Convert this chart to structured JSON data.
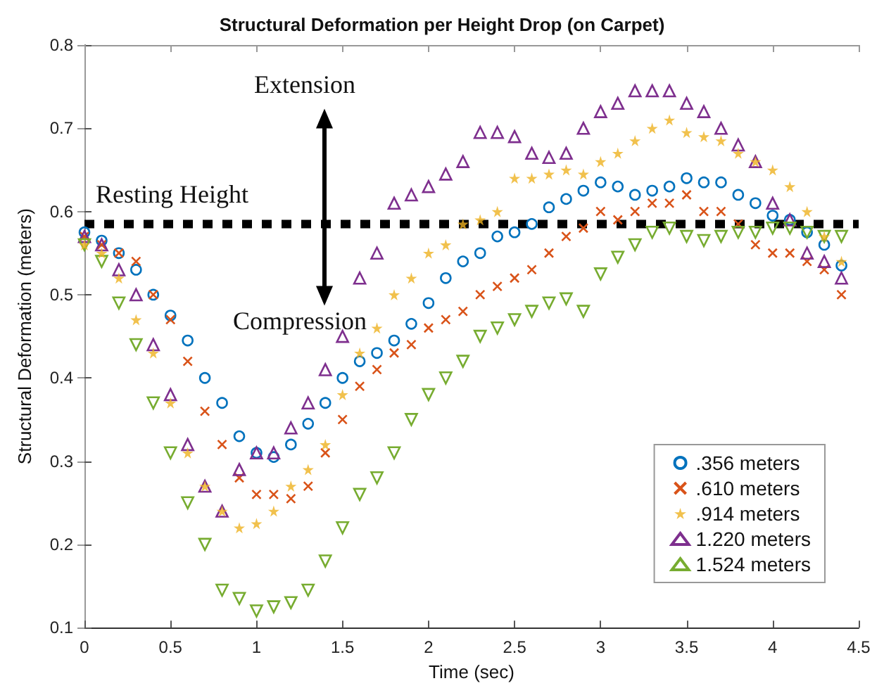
{
  "chart_data": {
    "type": "scatter",
    "title": "Structural Deformation per Height Drop (on Carpet)",
    "xlabel": "Time (sec)",
    "ylabel": "Structural Deformation (meters)",
    "x": [
      0,
      0.1,
      0.2,
      0.3,
      0.4,
      0.5,
      0.6,
      0.7,
      0.8,
      0.9,
      1.0,
      1.1,
      1.2,
      1.3,
      1.4,
      1.5,
      1.6,
      1.7,
      1.8,
      1.9,
      2.0,
      2.1,
      2.2,
      2.3,
      2.4,
      2.5,
      2.6,
      2.7,
      2.8,
      2.9,
      3.0,
      3.1,
      3.2,
      3.3,
      3.4,
      3.5,
      3.6,
      3.7,
      3.8,
      3.9,
      4.0,
      4.1,
      4.2,
      4.3,
      4.4
    ],
    "series": [
      {
        "name": ".356 meters",
        "color": "#0072bd",
        "marker": "circle",
        "values": [
          0.575,
          0.565,
          0.55,
          0.53,
          0.5,
          0.475,
          0.445,
          0.4,
          0.37,
          0.33,
          0.31,
          0.305,
          0.32,
          0.345,
          0.37,
          0.4,
          0.42,
          0.43,
          0.445,
          0.465,
          0.49,
          0.52,
          0.54,
          0.55,
          0.57,
          0.575,
          0.585,
          0.605,
          0.615,
          0.625,
          0.635,
          0.63,
          0.62,
          0.625,
          0.63,
          0.64,
          0.635,
          0.635,
          0.62,
          0.61,
          0.595,
          0.59,
          0.575,
          0.56,
          0.535
        ]
      },
      {
        "name": ".610 meters",
        "color": "#d95319",
        "marker": "cross",
        "values": [
          0.57,
          0.56,
          0.55,
          0.54,
          0.5,
          0.47,
          0.42,
          0.36,
          0.32,
          0.28,
          0.26,
          0.26,
          0.255,
          0.27,
          0.31,
          0.35,
          0.39,
          0.41,
          0.43,
          0.44,
          0.46,
          0.47,
          0.48,
          0.5,
          0.51,
          0.52,
          0.53,
          0.55,
          0.57,
          0.58,
          0.6,
          0.59,
          0.6,
          0.61,
          0.61,
          0.62,
          0.6,
          0.6,
          0.585,
          0.56,
          0.55,
          0.55,
          0.54,
          0.53,
          0.5
        ]
      },
      {
        "name": ".914 meters",
        "color": "#edb120",
        "marker": "star",
        "values": [
          0.56,
          0.55,
          0.52,
          0.47,
          0.43,
          0.37,
          0.31,
          0.27,
          0.24,
          0.22,
          0.225,
          0.24,
          0.27,
          0.29,
          0.32,
          0.38,
          0.43,
          0.46,
          0.5,
          0.52,
          0.55,
          0.56,
          0.585,
          0.59,
          0.6,
          0.64,
          0.64,
          0.645,
          0.65,
          0.645,
          0.66,
          0.67,
          0.685,
          0.7,
          0.71,
          0.695,
          0.69,
          0.685,
          0.67,
          0.66,
          0.65,
          0.63,
          0.6,
          0.57,
          0.54
        ]
      },
      {
        "name": "1.220 meters",
        "color": "#7e2f8e",
        "marker": "triangle",
        "values": [
          0.57,
          0.56,
          0.53,
          0.5,
          0.44,
          0.38,
          0.32,
          0.27,
          0.24,
          0.29,
          0.31,
          0.31,
          0.34,
          0.37,
          0.41,
          0.45,
          0.52,
          0.55,
          0.61,
          0.62,
          0.63,
          0.645,
          0.66,
          0.695,
          0.695,
          0.69,
          0.67,
          0.665,
          0.67,
          0.7,
          0.72,
          0.73,
          0.745,
          0.745,
          0.745,
          0.73,
          0.72,
          0.7,
          0.68,
          0.66,
          0.61,
          0.59,
          0.55,
          0.54,
          0.52
        ]
      },
      {
        "name": "1.524 meters",
        "color": "#77ac30",
        "marker": "triangle-down",
        "values": [
          0.56,
          0.54,
          0.49,
          0.44,
          0.37,
          0.31,
          0.25,
          0.2,
          0.145,
          0.135,
          0.12,
          0.125,
          0.13,
          0.145,
          0.18,
          0.22,
          0.26,
          0.28,
          0.31,
          0.35,
          0.38,
          0.4,
          0.42,
          0.45,
          0.46,
          0.47,
          0.48,
          0.49,
          0.495,
          0.48,
          0.525,
          0.545,
          0.56,
          0.575,
          0.58,
          0.57,
          0.565,
          0.57,
          0.575,
          0.575,
          0.58,
          0.58,
          0.575,
          0.57,
          0.57
        ]
      }
    ],
    "xlim": [
      0,
      4.5
    ],
    "xticks": [
      0,
      0.5,
      1,
      1.5,
      2,
      2.5,
      3,
      3.5,
      4,
      4.5
    ],
    "ylim": [
      0.1,
      0.8
    ],
    "yticks": [
      0.1,
      0.2,
      0.3,
      0.4,
      0.5,
      0.6,
      0.7,
      0.8
    ],
    "ref_lines": [
      {
        "axis": "y",
        "value": 0.585,
        "label": "Resting Height",
        "color": "#000000",
        "line_style": "dashed"
      }
    ],
    "annotations": [
      "Extension",
      "Compression"
    ],
    "grid": false,
    "legend": "bottom right"
  }
}
